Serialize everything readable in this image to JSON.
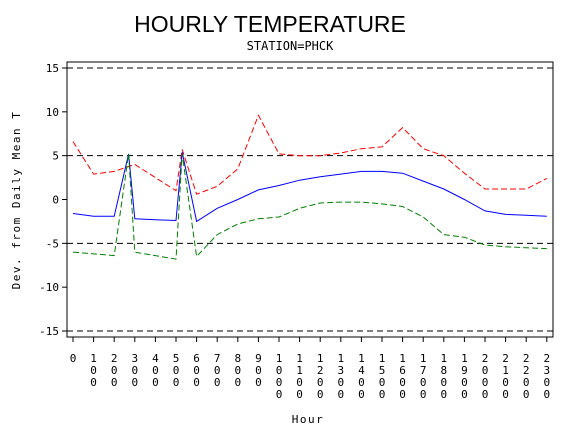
{
  "chart_data": {
    "type": "line",
    "title": "HOURLY TEMPERATURE",
    "subtitle": "STATION=PHCK",
    "xlabel": "Hour",
    "ylabel": "Dev. from Daily Mean T",
    "ylim": [
      -15,
      15
    ],
    "yticks": [
      -15,
      -10,
      -5,
      0,
      5,
      10,
      15
    ],
    "ytick_labels": [
      "-15",
      "-10",
      "-5",
      "0",
      "5",
      "10",
      "15"
    ],
    "x_tick_values": [
      0,
      100,
      200,
      300,
      400,
      500,
      600,
      700,
      800,
      900,
      1000,
      1100,
      1200,
      1300,
      1400,
      1500,
      1600,
      1700,
      1800,
      1900,
      2000,
      2100,
      2200,
      2300
    ],
    "x_tick_labels": [
      "0",
      "100",
      "200",
      "300",
      "400",
      "500",
      "600",
      "700",
      "800",
      "900",
      "1000",
      "1100",
      "1200",
      "1300",
      "1400",
      "1500",
      "1600",
      "1700",
      "1800",
      "1900",
      "2000",
      "2100",
      "2200",
      "2300"
    ],
    "reference_lines": [
      -15,
      -5,
      5,
      15
    ],
    "grid": false,
    "series": [
      {
        "color": "#ff0000",
        "style": "dashed",
        "points": [
          [
            0,
            6.6
          ],
          [
            100,
            2.9
          ],
          [
            200,
            3.2
          ],
          [
            300,
            4.0
          ],
          [
            400,
            2.5
          ],
          [
            500,
            1.0
          ],
          [
            530,
            5.7
          ],
          [
            600,
            0.6
          ],
          [
            700,
            1.5
          ],
          [
            800,
            3.5
          ],
          [
            900,
            9.6
          ],
          [
            1000,
            5.2
          ],
          [
            1100,
            5.0
          ],
          [
            1200,
            5.0
          ],
          [
            1300,
            5.3
          ],
          [
            1400,
            5.8
          ],
          [
            1500,
            6.0
          ],
          [
            1600,
            8.2
          ],
          [
            1700,
            5.8
          ],
          [
            1800,
            5.0
          ],
          [
            1900,
            3.0
          ],
          [
            2000,
            1.2
          ],
          [
            2100,
            1.2
          ],
          [
            2200,
            1.2
          ],
          [
            2300,
            2.4
          ]
        ]
      },
      {
        "color": "#0000ff",
        "style": "solid",
        "points": [
          [
            0,
            -1.6
          ],
          [
            100,
            -1.9
          ],
          [
            200,
            -1.9
          ],
          [
            270,
            5.2
          ],
          [
            300,
            -2.2
          ],
          [
            400,
            -2.3
          ],
          [
            500,
            -2.4
          ],
          [
            530,
            5.4
          ],
          [
            600,
            -2.5
          ],
          [
            700,
            -1.0
          ],
          [
            800,
            0.0
          ],
          [
            900,
            1.1
          ],
          [
            1000,
            1.6
          ],
          [
            1100,
            2.2
          ],
          [
            1200,
            2.6
          ],
          [
            1300,
            2.9
          ],
          [
            1400,
            3.2
          ],
          [
            1500,
            3.2
          ],
          [
            1600,
            3.0
          ],
          [
            1700,
            2.1
          ],
          [
            1800,
            1.2
          ],
          [
            1900,
            0.0
          ],
          [
            2000,
            -1.3
          ],
          [
            2100,
            -1.7
          ],
          [
            2200,
            -1.8
          ],
          [
            2300,
            -1.9
          ]
        ]
      },
      {
        "color": "#008000",
        "style": "dashed",
        "points": [
          [
            0,
            -6.0
          ],
          [
            100,
            -6.2
          ],
          [
            200,
            -6.4
          ],
          [
            270,
            5.2
          ],
          [
            300,
            -6.0
          ],
          [
            400,
            -6.4
          ],
          [
            500,
            -6.8
          ],
          [
            530,
            5.2
          ],
          [
            600,
            -6.5
          ],
          [
            700,
            -4.0
          ],
          [
            800,
            -2.8
          ],
          [
            900,
            -2.2
          ],
          [
            1000,
            -2.0
          ],
          [
            1100,
            -1.0
          ],
          [
            1200,
            -0.4
          ],
          [
            1300,
            -0.3
          ],
          [
            1400,
            -0.3
          ],
          [
            1500,
            -0.5
          ],
          [
            1600,
            -0.8
          ],
          [
            1700,
            -2.0
          ],
          [
            1800,
            -4.0
          ],
          [
            1900,
            -4.3
          ],
          [
            2000,
            -5.2
          ],
          [
            2100,
            -5.4
          ],
          [
            2200,
            -5.5
          ],
          [
            2300,
            -5.6
          ]
        ]
      }
    ]
  }
}
